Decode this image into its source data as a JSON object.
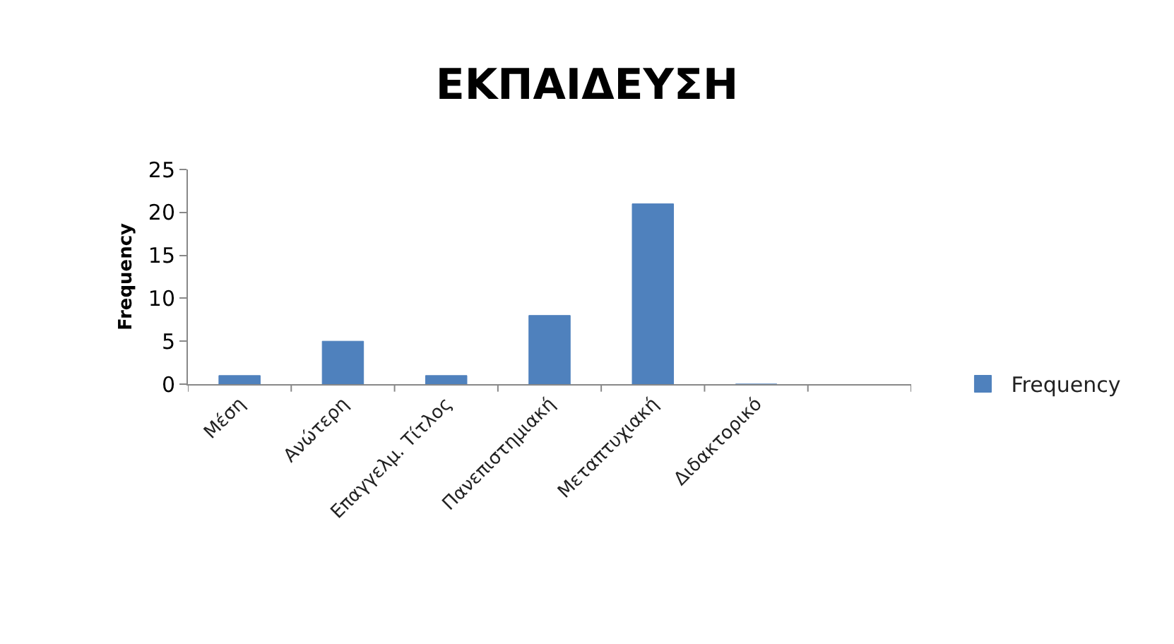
{
  "chart_data": {
    "type": "bar",
    "title": "ΕΚΠΑΙΔΕΥΣΗ",
    "ylabel": "Frequency",
    "categories": [
      "Μέση",
      "Ανώτερη",
      "Επαγγελμ. Τίτλος",
      "Πανεπιστημιακή",
      "Μεταπτυχιακή",
      "Διδακτορικό",
      null
    ],
    "series": [
      {
        "name": "Frequency",
        "color": "#4f81bd",
        "values": [
          1,
          5,
          1,
          8,
          21,
          0,
          null
        ]
      }
    ],
    "ylim": [
      0,
      25
    ],
    "yticks": [
      0,
      5,
      10,
      15,
      20,
      25
    ],
    "legend": "right"
  }
}
